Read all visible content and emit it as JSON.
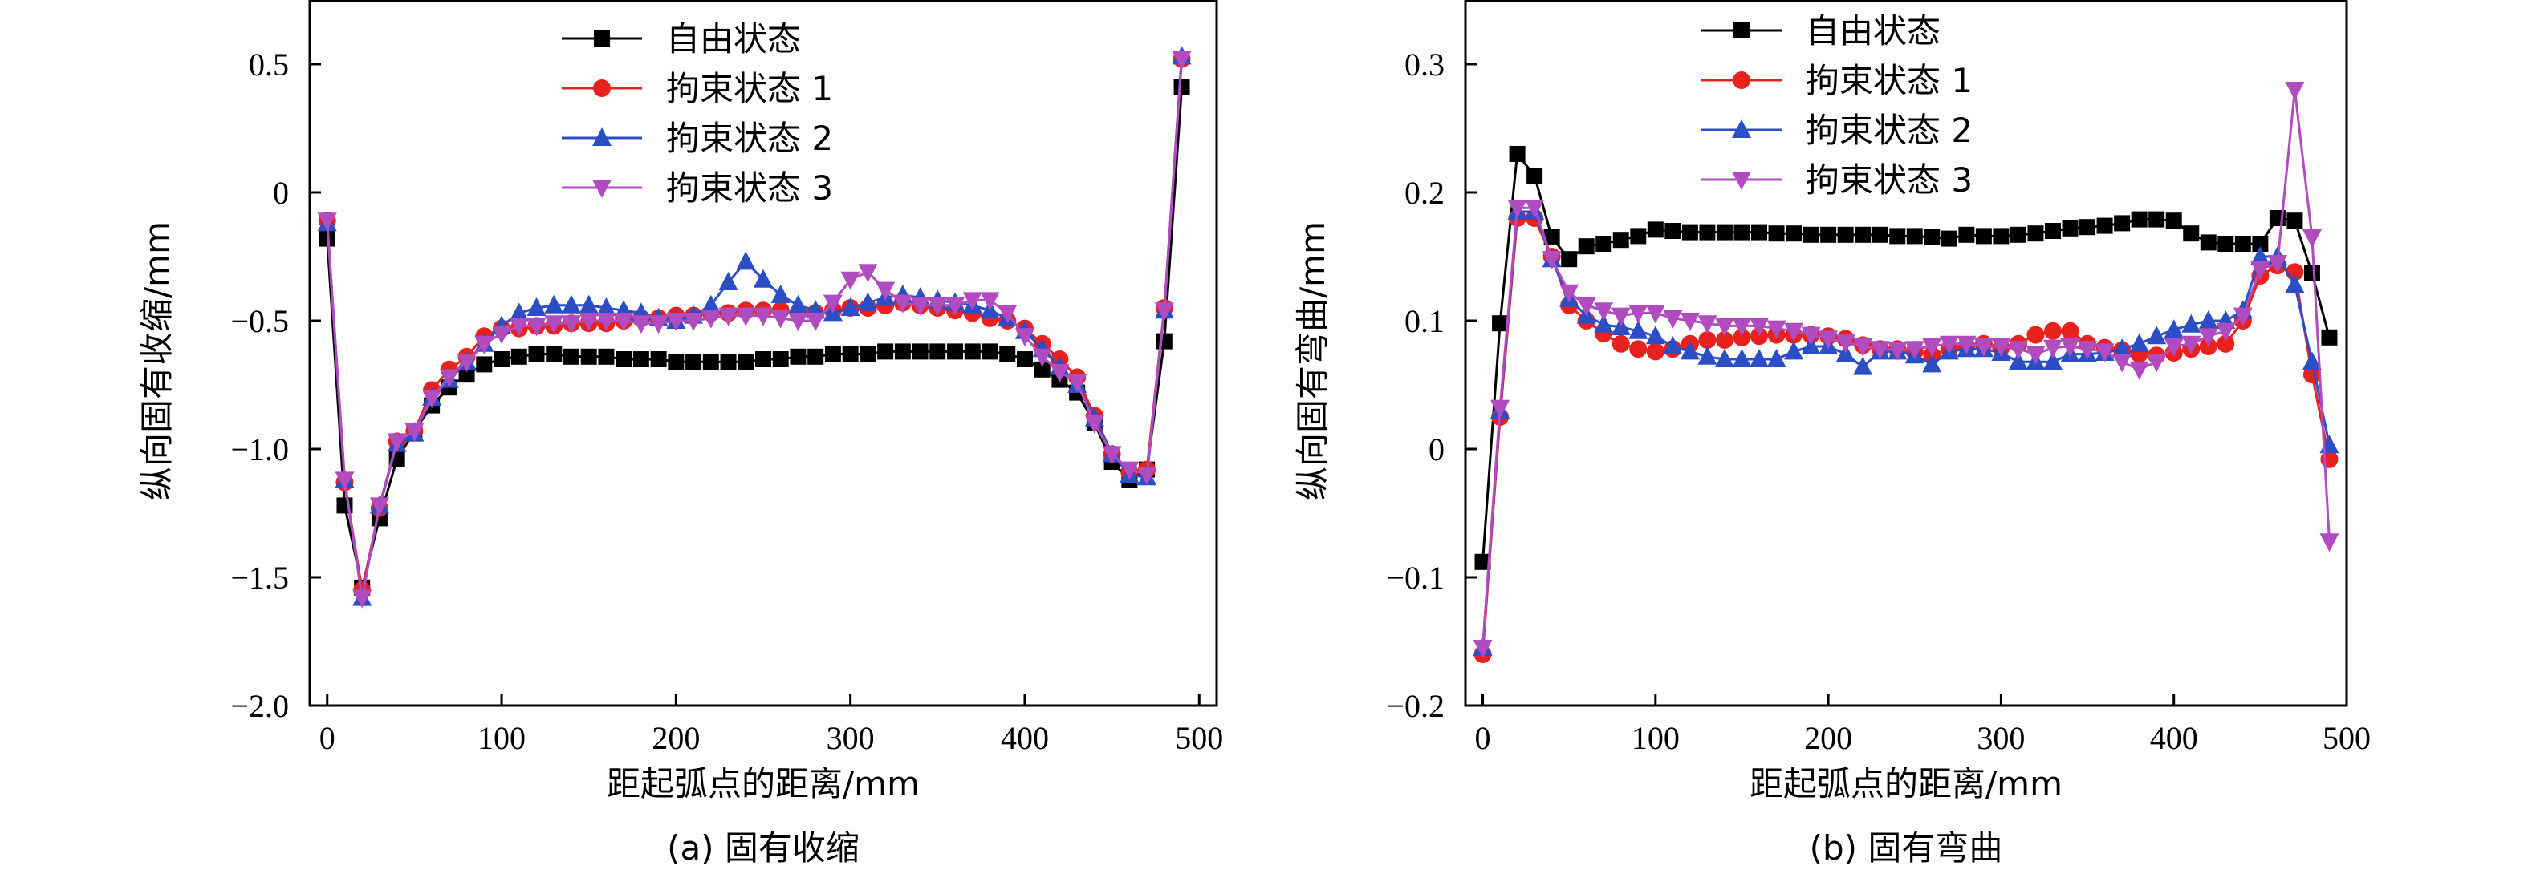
{
  "chart_data": [
    {
      "type": "line",
      "title": "",
      "caption": "(a) 固有收缩",
      "xlabel": "距起弧点的距离/mm",
      "ylabel": "纵向固有收缩/mm",
      "xlim": [
        -10,
        510
      ],
      "ylim": [
        -2.0,
        0.75
      ],
      "xticks": [
        0,
        100,
        200,
        300,
        400,
        500
      ],
      "xtick_labels": [
        "0",
        "100",
        "200",
        "300",
        "400",
        "500"
      ],
      "yticks": [
        -2.0,
        -1.5,
        -1.0,
        -0.5,
        0,
        0.5
      ],
      "ytick_labels": [
        "−2.0",
        "−1.5",
        "−1.0",
        "−0.5",
        "0",
        "0.5"
      ],
      "grid": false,
      "legend_position": "top-center",
      "x": [
        0,
        10,
        20,
        30,
        40,
        50,
        60,
        70,
        80,
        90,
        100,
        110,
        120,
        130,
        140,
        150,
        160,
        170,
        180,
        190,
        200,
        210,
        220,
        230,
        240,
        250,
        260,
        270,
        280,
        290,
        300,
        310,
        320,
        330,
        340,
        350,
        360,
        370,
        380,
        390,
        400,
        410,
        420,
        430,
        440,
        450,
        460,
        470,
        480,
        490
      ],
      "series": [
        {
          "name": "自由状态",
          "color": "#000000",
          "marker": "square",
          "values": [
            -0.18,
            -1.22,
            -1.54,
            -1.27,
            -1.04,
            -0.93,
            -0.83,
            -0.76,
            -0.71,
            -0.67,
            -0.65,
            -0.64,
            -0.63,
            -0.63,
            -0.64,
            -0.64,
            -0.64,
            -0.65,
            -0.65,
            -0.65,
            -0.66,
            -0.66,
            -0.66,
            -0.66,
            -0.66,
            -0.65,
            -0.65,
            -0.64,
            -0.64,
            -0.63,
            -0.63,
            -0.63,
            -0.62,
            -0.62,
            -0.62,
            -0.62,
            -0.62,
            -0.62,
            -0.62,
            -0.63,
            -0.65,
            -0.69,
            -0.73,
            -0.78,
            -0.9,
            -1.05,
            -1.12,
            -1.08,
            -0.58,
            0.41
          ]
        },
        {
          "name": "拘束状态 1",
          "color": "#e8201e",
          "marker": "circle",
          "values": [
            -0.11,
            -1.13,
            -1.55,
            -1.23,
            -0.97,
            -0.93,
            -0.77,
            -0.69,
            -0.64,
            -0.56,
            -0.53,
            -0.53,
            -0.52,
            -0.52,
            -0.51,
            -0.51,
            -0.51,
            -0.5,
            -0.49,
            -0.49,
            -0.48,
            -0.48,
            -0.47,
            -0.47,
            -0.46,
            -0.46,
            -0.46,
            -0.47,
            -0.47,
            -0.46,
            -0.45,
            -0.45,
            -0.44,
            -0.43,
            -0.44,
            -0.45,
            -0.46,
            -0.47,
            -0.49,
            -0.5,
            -0.53,
            -0.59,
            -0.65,
            -0.72,
            -0.87,
            -1.02,
            -1.09,
            -1.08,
            -0.45,
            0.52
          ]
        },
        {
          "name": "拘束状态 2",
          "color": "#2b4ec7",
          "marker": "triangle-up",
          "values": [
            -0.12,
            -1.12,
            -1.58,
            -1.22,
            -0.98,
            -0.94,
            -0.8,
            -0.73,
            -0.66,
            -0.59,
            -0.52,
            -0.47,
            -0.45,
            -0.44,
            -0.44,
            -0.44,
            -0.45,
            -0.46,
            -0.47,
            -0.49,
            -0.5,
            -0.48,
            -0.44,
            -0.35,
            -0.27,
            -0.34,
            -0.4,
            -0.44,
            -0.46,
            -0.47,
            -0.45,
            -0.43,
            -0.41,
            -0.4,
            -0.41,
            -0.42,
            -0.43,
            -0.44,
            -0.46,
            -0.49,
            -0.54,
            -0.61,
            -0.68,
            -0.75,
            -0.88,
            -1.02,
            -1.1,
            -1.11,
            -0.46,
            0.53
          ]
        },
        {
          "name": "拘束状态 3",
          "color": "#b04cc0",
          "marker": "triangle-down",
          "values": [
            -0.11,
            -1.12,
            -1.58,
            -1.22,
            -0.97,
            -0.93,
            -0.8,
            -0.72,
            -0.66,
            -0.59,
            -0.55,
            -0.52,
            -0.52,
            -0.51,
            -0.51,
            -0.5,
            -0.5,
            -0.5,
            -0.51,
            -0.51,
            -0.5,
            -0.5,
            -0.49,
            -0.48,
            -0.48,
            -0.48,
            -0.49,
            -0.5,
            -0.5,
            -0.43,
            -0.34,
            -0.31,
            -0.38,
            -0.43,
            -0.44,
            -0.44,
            -0.44,
            -0.42,
            -0.42,
            -0.47,
            -0.56,
            -0.64,
            -0.7,
            -0.74,
            -0.9,
            -1.02,
            -1.08,
            -1.1,
            -0.46,
            0.52
          ]
        }
      ]
    },
    {
      "type": "line",
      "title": "",
      "caption": "(b) 固有弯曲",
      "xlabel": "距起弧点的距离/mm",
      "ylabel": "纵向固有弯曲/mm",
      "xlim": [
        -10,
        500
      ],
      "ylim": [
        -0.2,
        0.35
      ],
      "xticks": [
        0,
        100,
        200,
        300,
        400,
        500
      ],
      "xtick_labels": [
        "0",
        "100",
        "200",
        "300",
        "400",
        "500"
      ],
      "yticks": [
        -0.2,
        -0.1,
        0,
        0.1,
        0.2,
        0.3
      ],
      "ytick_labels": [
        "−0.2",
        "−0.1",
        "0",
        "0.1",
        "0.2",
        "0.3"
      ],
      "grid": false,
      "legend_position": "top-center",
      "x": [
        0,
        10,
        20,
        30,
        40,
        50,
        60,
        70,
        80,
        90,
        100,
        110,
        120,
        130,
        140,
        150,
        160,
        170,
        180,
        190,
        200,
        210,
        220,
        230,
        240,
        250,
        260,
        270,
        280,
        290,
        300,
        310,
        320,
        330,
        340,
        350,
        360,
        370,
        380,
        390,
        400,
        410,
        420,
        430,
        440,
        450,
        460,
        470,
        480,
        490
      ],
      "series": [
        {
          "name": "自由状态",
          "color": "#000000",
          "marker": "square",
          "values": [
            -0.088,
            0.098,
            0.23,
            0.213,
            0.165,
            0.148,
            0.158,
            0.16,
            0.163,
            0.166,
            0.171,
            0.17,
            0.169,
            0.169,
            0.169,
            0.169,
            0.169,
            0.168,
            0.168,
            0.167,
            0.167,
            0.167,
            0.167,
            0.167,
            0.166,
            0.166,
            0.165,
            0.164,
            0.167,
            0.166,
            0.166,
            0.167,
            0.168,
            0.17,
            0.172,
            0.173,
            0.174,
            0.176,
            0.179,
            0.179,
            0.178,
            0.168,
            0.161,
            0.16,
            0.16,
            0.16,
            0.18,
            0.178,
            0.137,
            0.087
          ]
        },
        {
          "name": "拘束状态 1",
          "color": "#e8201e",
          "marker": "circle",
          "values": [
            -0.16,
            0.025,
            0.18,
            0.18,
            0.15,
            0.112,
            0.1,
            0.09,
            0.082,
            0.078,
            0.076,
            0.078,
            0.082,
            0.085,
            0.085,
            0.087,
            0.088,
            0.089,
            0.089,
            0.089,
            0.088,
            0.086,
            0.081,
            0.078,
            0.078,
            0.076,
            0.073,
            0.078,
            0.08,
            0.082,
            0.079,
            0.082,
            0.089,
            0.092,
            0.092,
            0.082,
            0.079,
            0.077,
            0.074,
            0.073,
            0.075,
            0.078,
            0.08,
            0.082,
            0.1,
            0.135,
            0.143,
            0.138,
            0.058,
            -0.008
          ]
        },
        {
          "name": "拘束状态 2",
          "color": "#2b4ec7",
          "marker": "triangle-up",
          "values": [
            -0.155,
            0.03,
            0.185,
            0.185,
            0.148,
            0.117,
            0.104,
            0.097,
            0.095,
            0.092,
            0.088,
            0.08,
            0.076,
            0.072,
            0.07,
            0.07,
            0.07,
            0.07,
            0.076,
            0.08,
            0.08,
            0.074,
            0.064,
            0.076,
            0.076,
            0.073,
            0.066,
            0.076,
            0.078,
            0.078,
            0.075,
            0.068,
            0.068,
            0.068,
            0.074,
            0.074,
            0.075,
            0.078,
            0.082,
            0.088,
            0.093,
            0.097,
            0.1,
            0.1,
            0.108,
            0.15,
            0.15,
            0.128,
            0.068,
            0.003
          ]
        },
        {
          "name": "拘束状态 3",
          "color": "#b04cc0",
          "marker": "triangle-down",
          "values": [
            -0.155,
            0.032,
            0.188,
            0.188,
            0.148,
            0.122,
            0.112,
            0.108,
            0.104,
            0.106,
            0.106,
            0.102,
            0.1,
            0.098,
            0.096,
            0.096,
            0.096,
            0.094,
            0.092,
            0.089,
            0.086,
            0.083,
            0.08,
            0.078,
            0.077,
            0.078,
            0.08,
            0.082,
            0.082,
            0.08,
            0.08,
            0.078,
            0.074,
            0.079,
            0.08,
            0.078,
            0.076,
            0.068,
            0.062,
            0.068,
            0.08,
            0.082,
            0.088,
            0.092,
            0.104,
            0.14,
            0.145,
            0.28,
            0.165,
            -0.072
          ]
        }
      ]
    }
  ]
}
